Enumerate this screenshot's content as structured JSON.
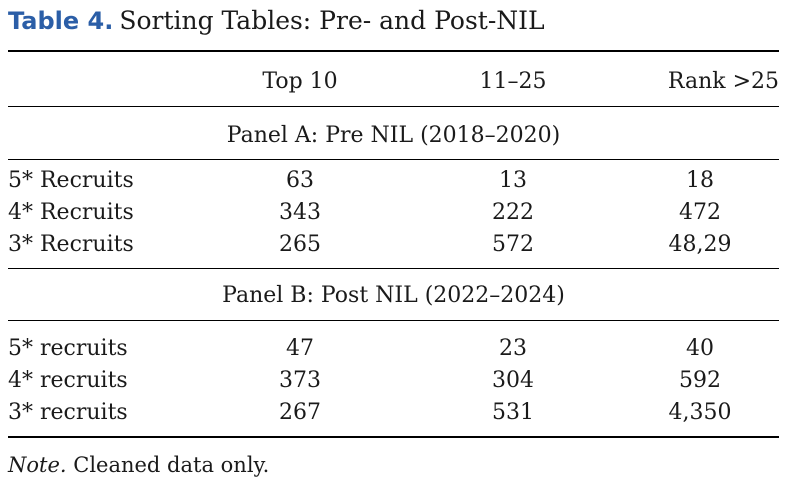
{
  "caption": {
    "label": "Table 4.",
    "title": "Sorting Tables: Pre- and Post-NIL"
  },
  "columns": [
    "Top 10",
    "11–25",
    "Rank >25"
  ],
  "panels": [
    {
      "title": "Panel A: Pre NIL (2018–2020)",
      "rows": [
        {
          "label": "5* Recruits",
          "values": [
            "63",
            "13",
            "18"
          ]
        },
        {
          "label": "4* Recruits",
          "values": [
            "343",
            "222",
            "472"
          ]
        },
        {
          "label": "3* Recruits",
          "values": [
            "265",
            "572",
            "48,29"
          ]
        }
      ]
    },
    {
      "title": "Panel B: Post NIL (2022–2024)",
      "rows": [
        {
          "label": "5* recruits",
          "values": [
            "47",
            "23",
            "40"
          ]
        },
        {
          "label": "4* recruits",
          "values": [
            "373",
            "304",
            "592"
          ]
        },
        {
          "label": "3* recruits",
          "values": [
            "267",
            "531",
            "4,350"
          ]
        }
      ]
    }
  ],
  "note": {
    "label": "Note.",
    "text": "Cleaned data only."
  }
}
